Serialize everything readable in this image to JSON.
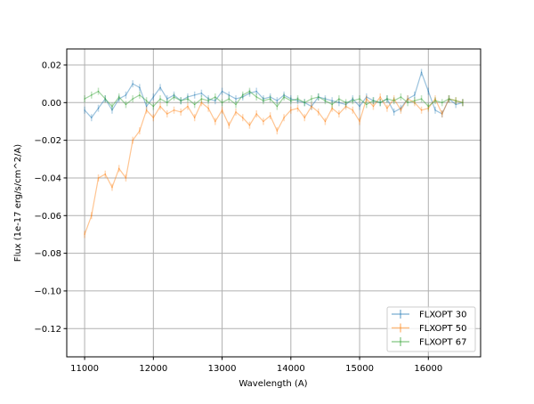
{
  "chart_data": {
    "type": "line",
    "title": "",
    "xlabel": "Wavelength (A)",
    "ylabel": "Flux (1e-17 erg/s/cm^2/A)",
    "xlim": [
      10740,
      16760
    ],
    "ylim": [
      -0.135,
      0.0285
    ],
    "grid": true,
    "legend_placement": "lower-right",
    "xticks": [
      11000,
      12000,
      13000,
      14000,
      15000,
      16000
    ],
    "xtick_labels": [
      "11000",
      "12000",
      "13000",
      "14000",
      "15000",
      "16000"
    ],
    "yticks": [
      0.02,
      0.0,
      -0.02,
      -0.04,
      -0.06,
      -0.08,
      -0.1,
      -0.12
    ],
    "ytick_labels": [
      "0.02",
      "0.00",
      "−0.02",
      "−0.04",
      "−0.06",
      "−0.08",
      "−0.10",
      "−0.12"
    ],
    "x_start": 11000,
    "x_step": 100,
    "series": [
      {
        "name": "FLXOPT 30",
        "color": "#1f77b4",
        "values": [
          -0.004,
          -0.008,
          -0.003,
          0.002,
          -0.004,
          0.002,
          0.004,
          0.01,
          0.008,
          -0.002,
          0.003,
          0.008,
          0.002,
          0.004,
          0.001,
          0.003,
          0.004,
          0.005,
          0.002,
          0.001,
          0.006,
          0.004,
          0.002,
          0.003,
          0.005,
          0.006,
          0.002,
          0.003,
          0.001,
          0.004,
          0.002,
          0.001,
          0.0,
          -0.002,
          0.003,
          0.002,
          0.001,
          0.0,
          -0.001,
          0.002,
          -0.002,
          0.003,
          0.001,
          0.0,
          0.002,
          -0.005,
          -0.003,
          0.002,
          0.004,
          0.016,
          0.006,
          -0.004,
          -0.006,
          0.002,
          -0.001,
          0.0
        ]
      },
      {
        "name": "FLXOPT 50",
        "color": "#ff7f0e",
        "values": [
          -0.07,
          -0.06,
          -0.04,
          -0.038,
          -0.045,
          -0.035,
          -0.04,
          -0.02,
          -0.015,
          -0.004,
          -0.008,
          -0.002,
          -0.006,
          -0.004,
          -0.005,
          -0.002,
          -0.008,
          0.0,
          -0.003,
          -0.01,
          -0.004,
          -0.012,
          -0.005,
          -0.008,
          -0.012,
          -0.006,
          -0.01,
          -0.007,
          -0.015,
          -0.008,
          -0.004,
          -0.003,
          -0.008,
          -0.002,
          -0.005,
          -0.01,
          -0.003,
          -0.006,
          -0.002,
          -0.004,
          -0.01,
          0.002,
          -0.002,
          0.003,
          -0.003,
          0.002,
          -0.004,
          0.002,
          0.0,
          -0.004,
          -0.003,
          0.002,
          -0.006,
          0.002,
          0.001,
          0.0
        ]
      },
      {
        "name": "FLXOPT 67",
        "color": "#2ca02c",
        "values": [
          0.002,
          0.004,
          0.006,
          0.002,
          -0.002,
          0.003,
          -0.001,
          0.002,
          0.004,
          0.001,
          -0.002,
          0.002,
          0.0,
          0.003,
          0.001,
          0.002,
          -0.001,
          0.002,
          0.001,
          0.003,
          0.0,
          0.002,
          -0.001,
          0.004,
          0.006,
          0.003,
          0.001,
          0.002,
          -0.002,
          0.003,
          0.001,
          0.002,
          0.0,
          0.002,
          0.003,
          0.001,
          -0.001,
          0.002,
          0.0,
          0.001,
          0.002,
          -0.001,
          0.001,
          0.0,
          0.002,
          0.001,
          0.003,
          0.0,
          0.001,
          0.002,
          -0.002,
          0.001,
          0.0,
          0.002,
          0.001,
          0.0
        ]
      }
    ]
  }
}
